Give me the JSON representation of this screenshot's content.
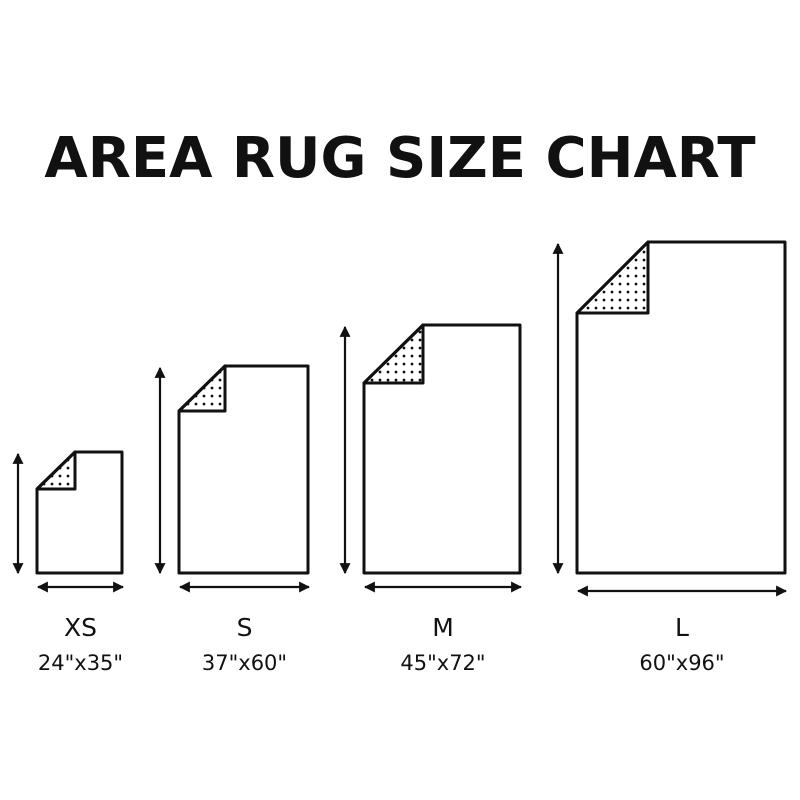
{
  "title": "AREA RUG SIZE CHART",
  "colors": {
    "ink": "#111111",
    "background": "#ffffff"
  },
  "rugs": [
    {
      "size": "XS",
      "dimensions": "24\"x35\""
    },
    {
      "size": "S",
      "dimensions": "37\"x60\""
    },
    {
      "size": "M",
      "dimensions": "45\"x72\""
    },
    {
      "size": "L",
      "dimensions": "60\"x96\""
    }
  ]
}
